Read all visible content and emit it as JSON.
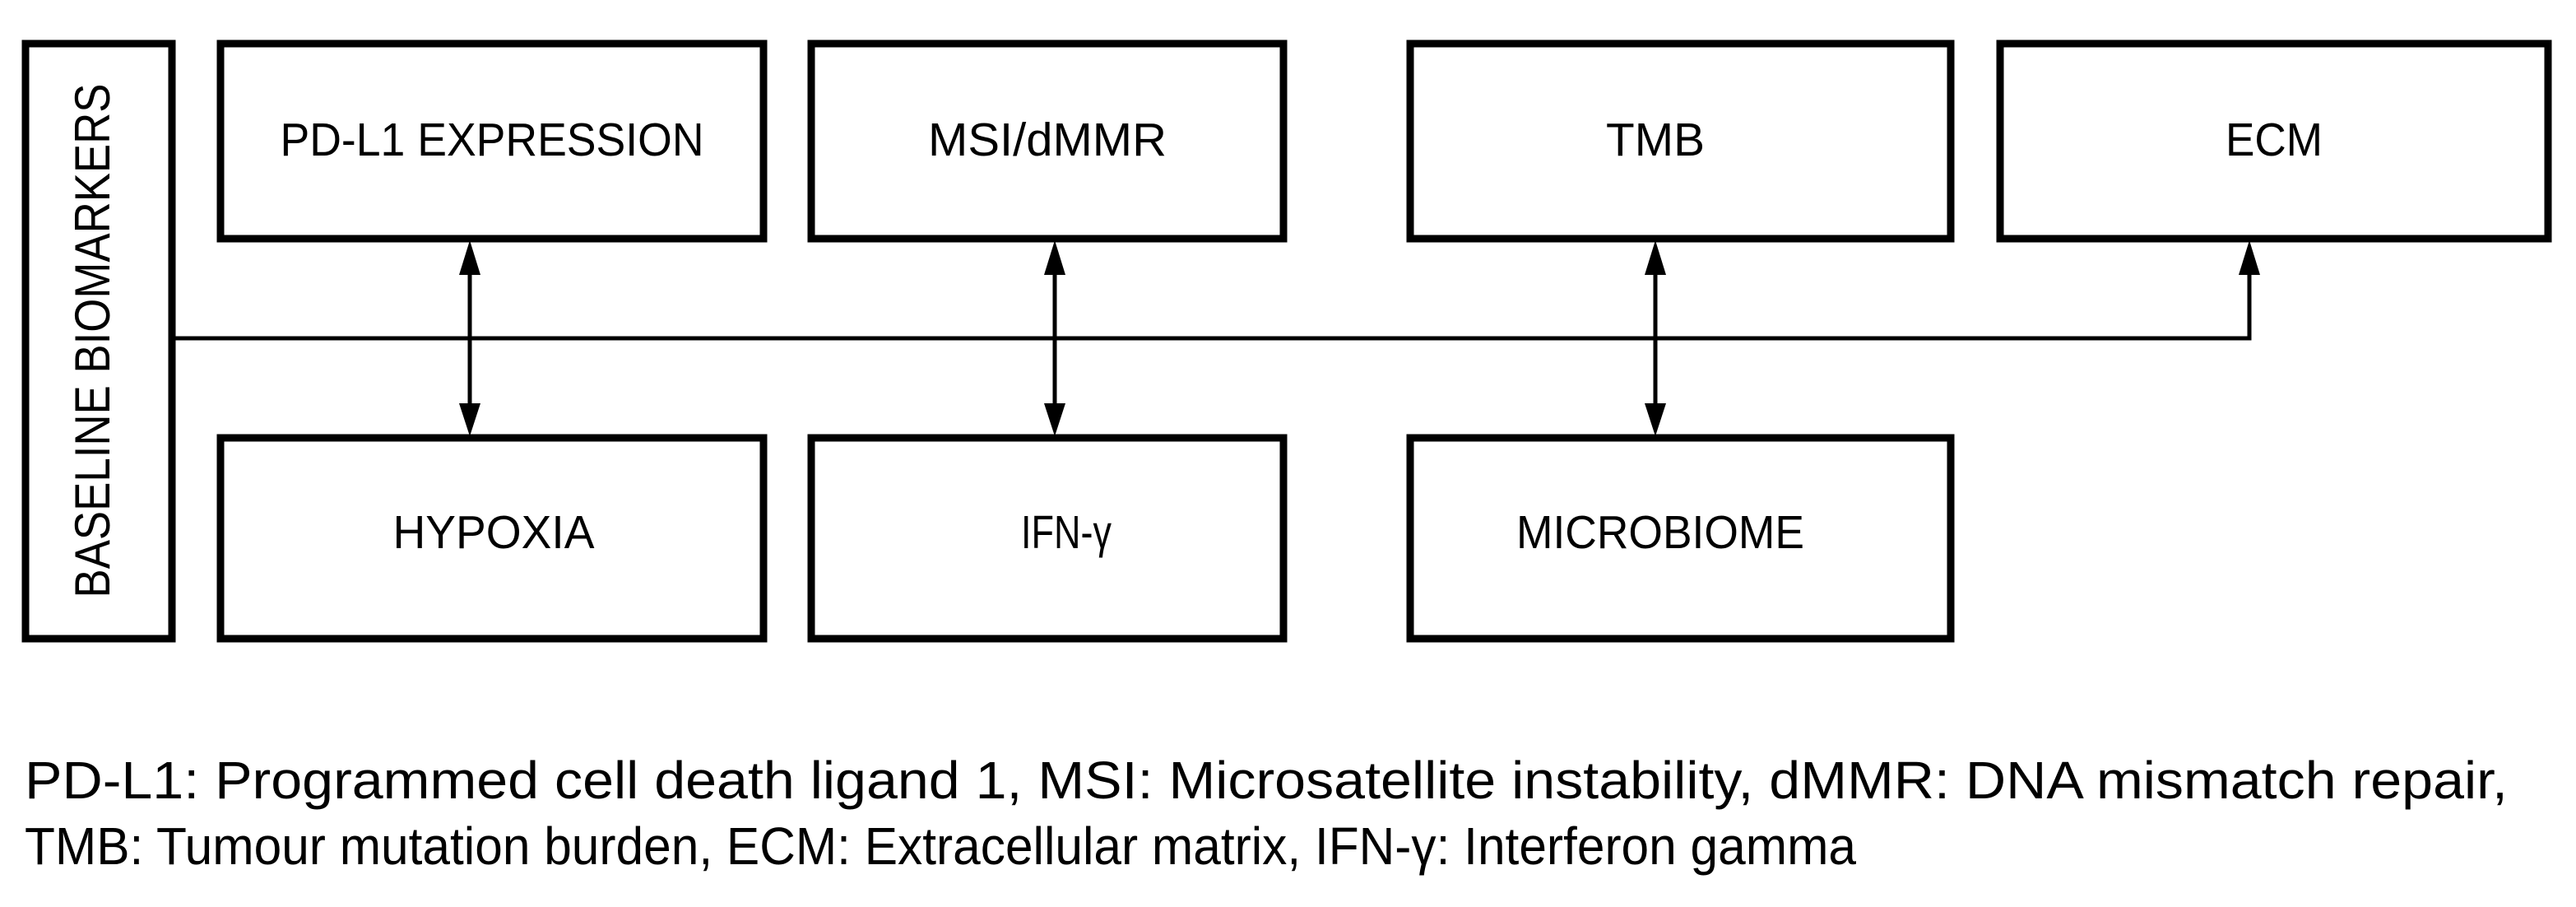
{
  "diagram": {
    "root": "BASELINE BIOMARKERS",
    "top_boxes": [
      "PD-L1 EXPRESSION",
      "MSI/dMMR",
      "TMB",
      "ECM"
    ],
    "bottom_boxes": [
      "HYPOXIA",
      "IFN-γ",
      "MICROBIOME"
    ]
  },
  "caption": {
    "line1": "PD-L1: Programmed cell death ligand 1, MSI: Microsatellite instability, dMMR: DNA mismatch repair,",
    "line2": "TMB: Tumour mutation burden, ECM: Extracellular matrix, IFN-γ: Interferon gamma"
  }
}
